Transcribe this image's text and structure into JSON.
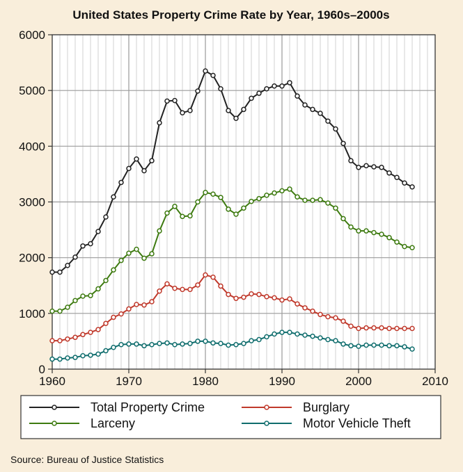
{
  "chart_data": {
    "type": "line",
    "title": "United States Property Crime Rate by Year, 1960s–2000s",
    "xlabel": "",
    "ylabel": "",
    "xlim": [
      1960,
      2010
    ],
    "ylim": [
      0,
      6000
    ],
    "x_ticks": [
      1960,
      1970,
      1980,
      1990,
      2000,
      2010
    ],
    "y_ticks": [
      0,
      1000,
      2000,
      3000,
      4000,
      5000,
      6000
    ],
    "grid": true,
    "legend_position": "bottom",
    "source": "Source: Bureau of Justice Statistics",
    "x": [
      1960,
      1961,
      1962,
      1963,
      1964,
      1965,
      1966,
      1967,
      1968,
      1969,
      1970,
      1971,
      1972,
      1973,
      1974,
      1975,
      1976,
      1977,
      1978,
      1979,
      1980,
      1981,
      1982,
      1983,
      1984,
      1985,
      1986,
      1987,
      1988,
      1989,
      1990,
      1991,
      1992,
      1993,
      1994,
      1995,
      1996,
      1997,
      1998,
      1999,
      2000,
      2001,
      2002,
      2003,
      2004,
      2005,
      2006,
      2007
    ],
    "series": [
      {
        "name": "Total Property Crime",
        "color": "#222222",
        "values": [
          1740,
          1740,
          1860,
          2010,
          2210,
          2250,
          2470,
          2730,
          3090,
          3350,
          3600,
          3770,
          3560,
          3740,
          4420,
          4810,
          4820,
          4600,
          4640,
          4990,
          5350,
          5270,
          5030,
          4640,
          4500,
          4660,
          4860,
          4950,
          5030,
          5080,
          5080,
          5140,
          4900,
          4740,
          4660,
          4590,
          4450,
          4310,
          4050,
          3740,
          3620,
          3650,
          3630,
          3620,
          3520,
          3440,
          3340,
          3270
        ]
      },
      {
        "name": "Burglary",
        "color": "#c0392b",
        "values": [
          510,
          510,
          540,
          570,
          620,
          660,
          710,
          820,
          930,
          990,
          1080,
          1160,
          1150,
          1210,
          1400,
          1530,
          1450,
          1430,
          1430,
          1510,
          1690,
          1650,
          1490,
          1340,
          1270,
          1290,
          1350,
          1340,
          1300,
          1280,
          1240,
          1260,
          1170,
          1100,
          1040,
          980,
          940,
          920,
          860,
          770,
          730,
          740,
          740,
          740,
          730,
          730,
          730,
          730
        ]
      },
      {
        "name": "Larceny",
        "color": "#3d7a0f",
        "values": [
          1040,
          1040,
          1110,
          1230,
          1310,
          1320,
          1440,
          1590,
          1780,
          1950,
          2080,
          2150,
          1990,
          2070,
          2480,
          2800,
          2920,
          2740,
          2750,
          3000,
          3170,
          3140,
          3080,
          2870,
          2780,
          2890,
          3010,
          3060,
          3120,
          3160,
          3200,
          3230,
          3090,
          3030,
          3030,
          3040,
          2980,
          2890,
          2700,
          2550,
          2480,
          2480,
          2450,
          2420,
          2360,
          2280,
          2200,
          2180
        ]
      },
      {
        "name": "Motor Vehicle Theft",
        "color": "#0f6d6d",
        "values": [
          180,
          180,
          200,
          210,
          240,
          250,
          270,
          330,
          390,
          440,
          450,
          450,
          420,
          440,
          460,
          470,
          440,
          450,
          460,
          500,
          500,
          470,
          460,
          430,
          440,
          460,
          510,
          530,
          580,
          630,
          660,
          660,
          630,
          610,
          590,
          560,
          530,
          510,
          450,
          420,
          410,
          430,
          430,
          430,
          420,
          420,
          400,
          360
        ]
      }
    ]
  }
}
